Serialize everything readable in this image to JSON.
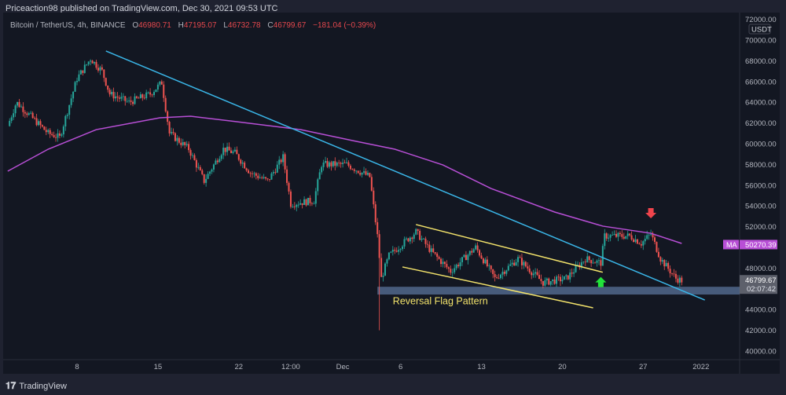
{
  "header": {
    "published": "Priceaction98 published on TradingView.com, Dec 30, 2021 09:53 UTC"
  },
  "legend": {
    "symbol": "Bitcoin / TetherUS, 4h, BINANCE",
    "o_label": "O",
    "o": "46980.71",
    "h_label": "H",
    "h": "47195.07",
    "l_label": "L",
    "l": "46732.78",
    "c_label": "C",
    "c": "46799.67",
    "change": "−181.04 (−0.39%)"
  },
  "footer": {
    "brand": "TradingView",
    "logo_icon": "tradingview-logo-icon"
  },
  "colors": {
    "up": "#26a69a",
    "down": "#ef5350",
    "ma": "#b84fd6",
    "trendline": "#3ab6e8",
    "flag": "#f3e36b",
    "zone": "#5a7399",
    "arrow_up": "#22e33a",
    "arrow_down": "#f0444c"
  },
  "chart_data": {
    "type": "candlestick",
    "currency": "USDT",
    "ylim": [
      40000,
      72000
    ],
    "y_ticks": [
      "72000.00",
      "70000.00",
      "68000.00",
      "66000.00",
      "64000.00",
      "62000.00",
      "60000.00",
      "58000.00",
      "56000.00",
      "54000.00",
      "52000.00",
      "48000.00",
      "44000.00",
      "42000.00",
      "40000.00"
    ],
    "y_tick_values": [
      72000,
      70000,
      68000,
      66000,
      64000,
      62000,
      60000,
      58000,
      56000,
      54000,
      52000,
      48000,
      44000,
      42000,
      40000
    ],
    "x_ticks": [
      {
        "label": "8",
        "date": "2021-11-08T00:00"
      },
      {
        "label": "15",
        "date": "2021-11-15T00:00"
      },
      {
        "label": "22",
        "date": "2021-11-22T00:00"
      },
      {
        "label": "12:00",
        "date": "2021-11-26T12:00"
      },
      {
        "label": "Dec",
        "date": "2021-12-01T00:00"
      },
      {
        "label": "6",
        "date": "2021-12-06T00:00"
      },
      {
        "label": "13",
        "date": "2021-12-13T00:00"
      },
      {
        "label": "20",
        "date": "2021-12-20T00:00"
      },
      {
        "label": "27",
        "date": "2021-12-27T00:00"
      },
      {
        "label": "2022",
        "date": "2022-01-01T00:00"
      }
    ],
    "price_path": [
      [
        "2021-11-02T00:00",
        61700
      ],
      [
        "2021-11-02T18:00",
        64000
      ],
      [
        "2021-11-05T12:00",
        61000
      ],
      [
        "2021-11-06T12:00",
        60600
      ],
      [
        "2021-11-08T00:00",
        66300
      ],
      [
        "2021-11-09T04:00",
        68200
      ],
      [
        "2021-11-10T04:00",
        67000
      ],
      [
        "2021-11-10T20:00",
        64800
      ],
      [
        "2021-11-12T12:00",
        64000
      ],
      [
        "2021-11-14T08:00",
        64800
      ],
      [
        "2021-11-15T08:00",
        65900
      ],
      [
        "2021-11-16T00:00",
        61000
      ],
      [
        "2021-11-17T16:00",
        59500
      ],
      [
        "2021-11-19T00:00",
        56400
      ],
      [
        "2021-11-20T16:00",
        59500
      ],
      [
        "2021-11-21T16:00",
        59100
      ],
      [
        "2021-11-23T00:00",
        57200
      ],
      [
        "2021-11-24T12:00",
        56400
      ],
      [
        "2021-11-25T20:00",
        58700
      ],
      [
        "2021-11-26T12:00",
        54200
      ],
      [
        "2021-11-28T12:00",
        54500
      ],
      [
        "2021-11-29T04:00",
        58000
      ],
      [
        "2021-12-01T08:00",
        58000
      ],
      [
        "2021-12-03T08:00",
        56800
      ],
      [
        "2021-12-04T00:00",
        51100
      ],
      [
        "2021-12-04T08:00",
        47000
      ],
      [
        "2021-12-05T00:00",
        49200
      ],
      [
        "2021-12-07T08:00",
        51500
      ],
      [
        "2021-12-08T16:00",
        49600
      ],
      [
        "2021-12-10T08:00",
        47700
      ],
      [
        "2021-12-12T12:00",
        50000
      ],
      [
        "2021-12-14T04:00",
        47000
      ],
      [
        "2021-12-16T04:00",
        48900
      ],
      [
        "2021-12-18T08:00",
        46600
      ],
      [
        "2021-12-20T08:00",
        47000
      ],
      [
        "2021-12-22T00:00",
        48900
      ],
      [
        "2021-12-23T08:00",
        48500
      ],
      [
        "2021-12-23T16:00",
        51100
      ],
      [
        "2021-12-25T20:00",
        51100
      ],
      [
        "2021-12-26T20:00",
        50400
      ],
      [
        "2021-12-27T16:00",
        51300
      ],
      [
        "2021-12-28T12:00",
        48900
      ],
      [
        "2021-12-29T20:00",
        47000
      ],
      [
        "2021-12-30T08:00",
        46800
      ]
    ],
    "extreme_low": {
      "date": "2021-12-04T04:00",
      "price": 42000
    },
    "ma": {
      "label": "MA",
      "value": "50270.39",
      "path": [
        [
          "2021-11-02T00:00",
          57350
        ],
        [
          "2021-11-05T12:00",
          59470
        ],
        [
          "2021-11-09T16:00",
          61360
        ],
        [
          "2021-11-15T04:00",
          62500
        ],
        [
          "2021-11-17T20:00",
          62650
        ],
        [
          "2021-11-21T20:00",
          62120
        ],
        [
          "2021-11-27T08:00",
          61360
        ],
        [
          "2021-12-02T04:00",
          60230
        ],
        [
          "2021-12-05T12:00",
          59470
        ],
        [
          "2021-12-09T16:00",
          57950
        ],
        [
          "2021-12-13T20:00",
          55680
        ],
        [
          "2021-12-19T08:00",
          53410
        ],
        [
          "2021-12-23T12:00",
          52050
        ],
        [
          "2021-12-27T16:00",
          51360
        ],
        [
          "2021-12-30T08:00",
          50380
        ]
      ]
    },
    "last_price": {
      "value": "46799.67",
      "countdown": "02:07:42"
    },
    "annotations": {
      "trendline": [
        [
          "2021-11-10T12:00",
          68940
        ],
        [
          "2022-01-01T08:00",
          44920
        ]
      ],
      "flag_upper": [
        [
          "2021-12-07T08:00",
          52200
        ],
        [
          "2021-12-23T12:00",
          47600
        ]
      ],
      "flag_lower": [
        [
          "2021-12-06T04:00",
          48110
        ],
        [
          "2021-12-22T16:00",
          44170
        ]
      ],
      "support_zone": {
        "from": "2021-12-04T00:00",
        "top": 46200,
        "bottom": 45450
      },
      "arrow_up": {
        "date": "2021-12-23T08:00",
        "price": 47600
      },
      "arrow_down": {
        "date": "2021-12-27T16:00",
        "price": 52800
      },
      "label": {
        "text": "Reversal Flag Pattern",
        "date": "2021-12-05T08:00",
        "price": 44800
      }
    }
  }
}
